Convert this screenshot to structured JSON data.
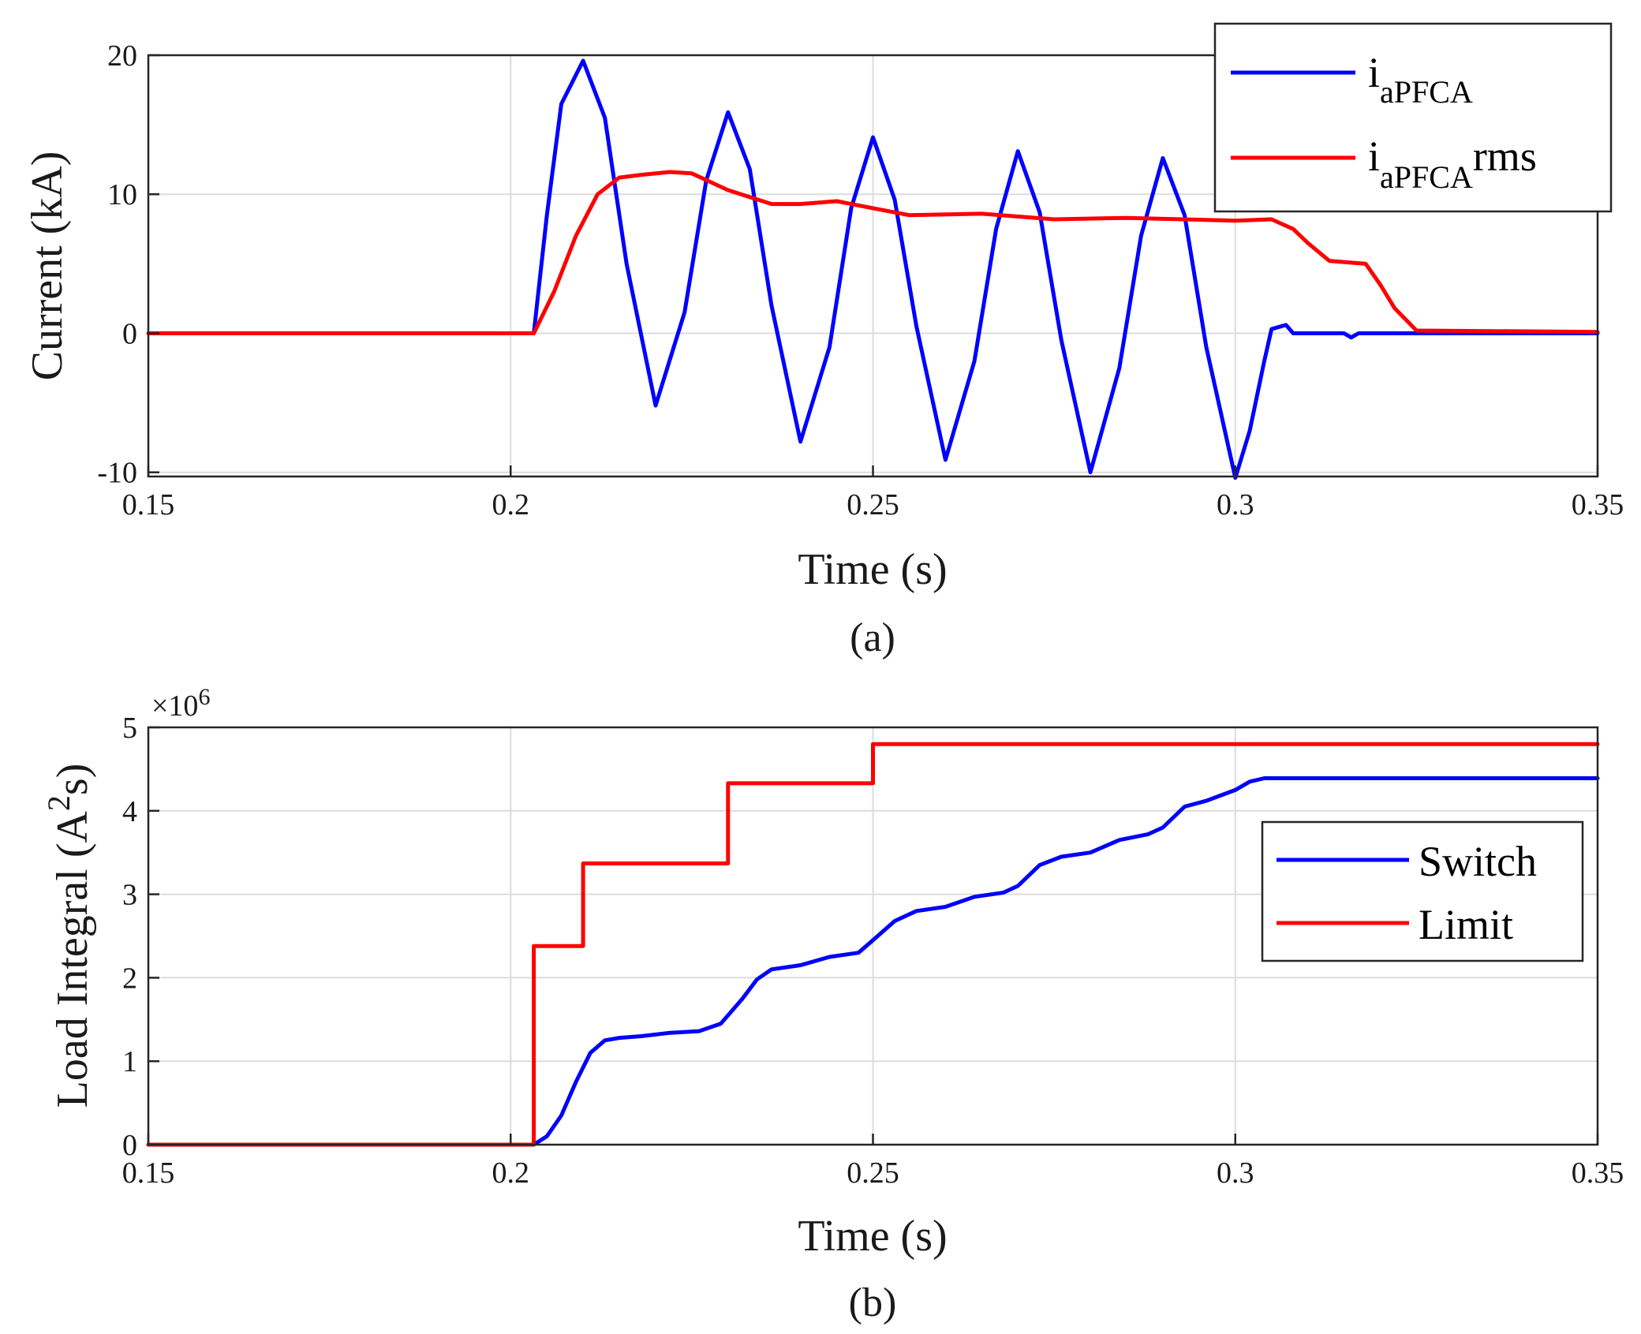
{
  "chart_data": [
    {
      "type": "line",
      "caption": "(a)",
      "xlabel": "Time (s)",
      "ylabel": "Current (kA)",
      "xlim": [
        0.15,
        0.35
      ],
      "ylim": [
        -10.3,
        20
      ],
      "xticks": [
        0.15,
        0.2,
        0.25,
        0.3,
        0.35
      ],
      "xtick_labels": [
        "0.15",
        "0.2",
        "0.25",
        "0.3",
        "0.35"
      ],
      "yticks": [
        -10,
        0,
        10,
        20
      ],
      "ytick_labels": [
        "-10",
        "0",
        "10",
        "20"
      ],
      "grid": true,
      "legend_position": "top-right",
      "series": [
        {
          "name": "i_aPFCA",
          "label_main": "i",
          "label_sub": "aPFCA",
          "color": "#0000ff",
          "x": [
            0.15,
            0.2032,
            0.205,
            0.207,
            0.21,
            0.213,
            0.216,
            0.22,
            0.224,
            0.227,
            0.23,
            0.233,
            0.236,
            0.24,
            0.244,
            0.247,
            0.25,
            0.253,
            0.256,
            0.26,
            0.264,
            0.267,
            0.27,
            0.273,
            0.276,
            0.28,
            0.284,
            0.287,
            0.29,
            0.293,
            0.296,
            0.3,
            0.302,
            0.304,
            0.305,
            0.307,
            0.308,
            0.31,
            0.315,
            0.316,
            0.317,
            0.35
          ],
          "y": [
            0,
            0,
            8.5,
            16.5,
            19.6,
            15.5,
            5.0,
            -5.2,
            1.5,
            11.0,
            15.9,
            11.8,
            2.0,
            -7.8,
            -1.0,
            9.0,
            14.1,
            9.6,
            0.5,
            -9.1,
            -2.0,
            7.5,
            13.1,
            8.7,
            -0.5,
            -10.0,
            -2.5,
            7.0,
            12.6,
            8.5,
            -1.0,
            -10.4,
            -7.0,
            -2.0,
            0.3,
            0.6,
            0.0,
            0.0,
            0.0,
            -0.3,
            0.0,
            0.0
          ]
        },
        {
          "name": "i_aPFCA rms",
          "label_main": "i",
          "label_sub": "aPFCA",
          "label_sup": "rms",
          "color": "#ff0000",
          "x": [
            0.15,
            0.2032,
            0.206,
            0.209,
            0.212,
            0.215,
            0.218,
            0.222,
            0.225,
            0.23,
            0.236,
            0.24,
            0.245,
            0.25,
            0.255,
            0.265,
            0.275,
            0.285,
            0.3,
            0.305,
            0.308,
            0.31,
            0.313,
            0.318,
            0.32,
            0.322,
            0.325,
            0.35
          ],
          "y": [
            0,
            0,
            3.0,
            7.0,
            10.0,
            11.2,
            11.4,
            11.6,
            11.5,
            10.3,
            9.3,
            9.3,
            9.5,
            9.0,
            8.5,
            8.6,
            8.2,
            8.3,
            8.1,
            8.2,
            7.5,
            6.5,
            5.2,
            5.0,
            3.5,
            1.8,
            0.2,
            0.1
          ]
        }
      ]
    },
    {
      "type": "line",
      "caption": "(b)",
      "xlabel": "Time (s)",
      "ylabel": "Load Integral (A",
      "ylabel_sup": "2",
      "ylabel_tail": "s)",
      "exponent_label": "×10",
      "exponent_sup": "6",
      "xlim": [
        0.15,
        0.35
      ],
      "ylim": [
        0,
        5
      ],
      "xticks": [
        0.15,
        0.2,
        0.25,
        0.3,
        0.35
      ],
      "xtick_labels": [
        "0.15",
        "0.2",
        "0.25",
        "0.3",
        "0.35"
      ],
      "yticks": [
        0,
        1,
        2,
        3,
        4,
        5
      ],
      "ytick_labels": [
        "0",
        "1",
        "2",
        "3",
        "4",
        "5"
      ],
      "grid": true,
      "legend_position": "center-right",
      "series": [
        {
          "name": "Switch",
          "color": "#0000ff",
          "x": [
            0.15,
            0.2032,
            0.205,
            0.207,
            0.209,
            0.211,
            0.213,
            0.215,
            0.218,
            0.222,
            0.226,
            0.229,
            0.232,
            0.234,
            0.236,
            0.24,
            0.244,
            0.248,
            0.25,
            0.253,
            0.256,
            0.26,
            0.264,
            0.268,
            0.27,
            0.273,
            0.276,
            0.28,
            0.284,
            0.288,
            0.29,
            0.293,
            0.296,
            0.3,
            0.302,
            0.304,
            0.35
          ],
          "y": [
            0,
            0,
            0.1,
            0.35,
            0.75,
            1.1,
            1.25,
            1.28,
            1.3,
            1.34,
            1.36,
            1.45,
            1.75,
            1.98,
            2.1,
            2.15,
            2.25,
            2.3,
            2.45,
            2.68,
            2.8,
            2.85,
            2.97,
            3.02,
            3.1,
            3.35,
            3.45,
            3.5,
            3.65,
            3.72,
            3.8,
            4.05,
            4.12,
            4.25,
            4.35,
            4.39,
            4.39
          ]
        },
        {
          "name": "Limit",
          "color": "#ff0000",
          "x": [
            0.15,
            0.2032,
            0.2032,
            0.21,
            0.21,
            0.23,
            0.23,
            0.25,
            0.25,
            0.35
          ],
          "y": [
            0,
            0,
            2.38,
            2.38,
            3.37,
            3.37,
            4.33,
            4.33,
            4.8,
            4.8
          ]
        }
      ]
    }
  ]
}
